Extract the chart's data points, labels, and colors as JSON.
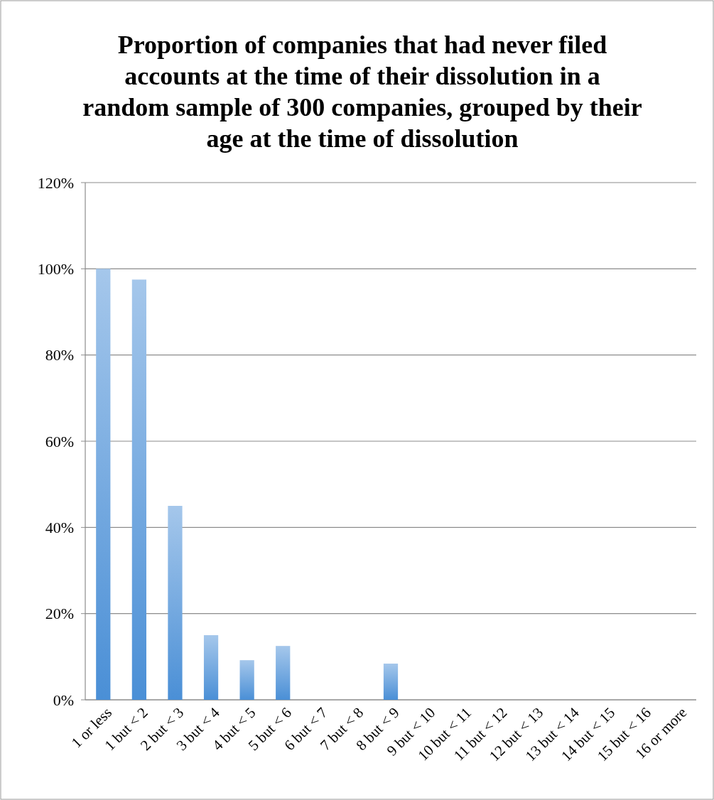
{
  "chart_data": {
    "type": "bar",
    "title": "Proportion of companies that had never filed accounts at the time of their dissolution in a random sample of 300 companies, grouped by their age at the time of dissolution",
    "categories": [
      "1 or less",
      "1 but < 2",
      "2 but < 3",
      "3 but < 4",
      "4 but < 5",
      "5 but < 6",
      "6 but < 7",
      "7 but < 8",
      "8 but < 9",
      "9 but < 10",
      "10 but < 11",
      "11 but < 12",
      "12 but < 13",
      "13 but < 14",
      "14 but < 15",
      "15 but < 16",
      "16 or more"
    ],
    "values": [
      100,
      97.5,
      45,
      15,
      9.2,
      12.5,
      0,
      0,
      8.4,
      0,
      0,
      0,
      0,
      0,
      0,
      0,
      0
    ],
    "color": "#4a8fd6",
    "ylim": [
      0,
      120
    ],
    "yticks": [
      {
        "value": 0,
        "label": "0%"
      },
      {
        "value": 20,
        "label": "20%"
      },
      {
        "value": 40,
        "label": "40%"
      },
      {
        "value": 60,
        "label": "60%"
      },
      {
        "value": 80,
        "label": "80%"
      },
      {
        "value": 100,
        "label": "100%"
      },
      {
        "value": 120,
        "label": "120%"
      }
    ],
    "grid": "y"
  }
}
